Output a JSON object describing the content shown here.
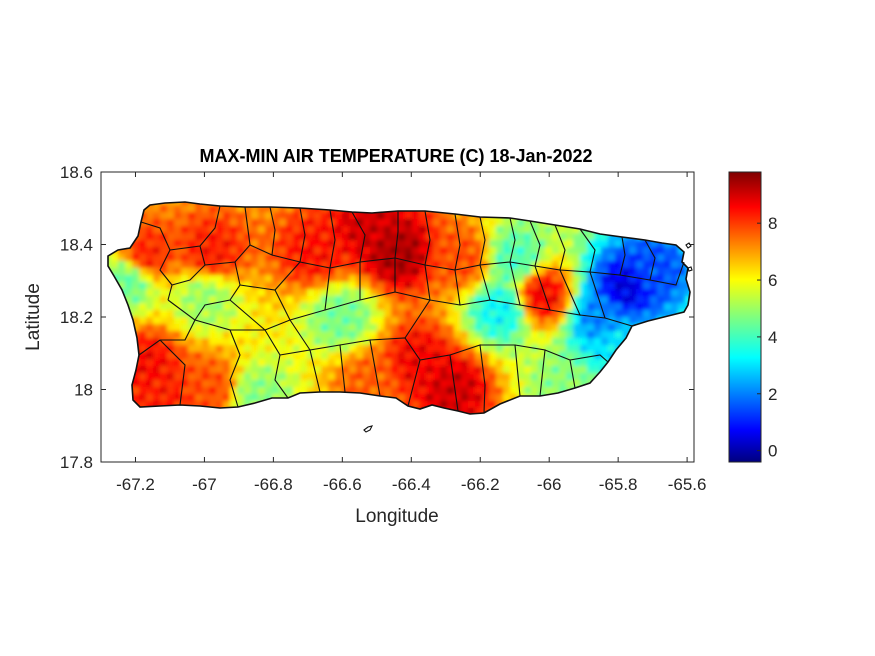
{
  "chart_data": {
    "type": "heatmap",
    "title": "MAX-MIN AIR TEMPERATURE (C) 18-Jan-2022",
    "xlabel": "Longitude",
    "ylabel": "Latitude",
    "xlim": [
      -67.3,
      -65.58
    ],
    "ylim": [
      17.8,
      18.6
    ],
    "xticks": [
      -67.2,
      -67,
      -66.8,
      -66.6,
      -66.4,
      -66.2,
      -66,
      -65.8,
      -65.6
    ],
    "xtick_labels": [
      "-67.2",
      "-67",
      "-66.8",
      "-66.6",
      "-66.4",
      "-66.2",
      "-66",
      "-65.8",
      "-65.6"
    ],
    "yticks": [
      17.8,
      18,
      18.2,
      18.4,
      18.6
    ],
    "ytick_labels": [
      "17.8",
      "18",
      "18.2",
      "18.4",
      "18.6"
    ],
    "colormap": "jet",
    "clim": [
      -0.4,
      9.8
    ],
    "colorbar_ticks": [
      0,
      2,
      4,
      6,
      8
    ],
    "colorbar_tick_labels": [
      "0",
      "2",
      "4",
      "6",
      "8"
    ],
    "grid": false,
    "hotspots": [
      {
        "lon": -66.44,
        "lat": 18.38,
        "value": 9.4
      },
      {
        "lon": -66.52,
        "lat": 18.45,
        "value": 9.0
      },
      {
        "lon": -66.68,
        "lat": 18.38,
        "value": 8.4
      },
      {
        "lon": -66.98,
        "lat": 18.38,
        "value": 8.3
      },
      {
        "lon": -67.17,
        "lat": 18.37,
        "value": 8.2
      },
      {
        "lon": -67.17,
        "lat": 18.07,
        "value": 8.5
      },
      {
        "lon": -67.12,
        "lat": 17.98,
        "value": 8.3
      },
      {
        "lon": -66.98,
        "lat": 18.0,
        "value": 7.8
      },
      {
        "lon": -66.28,
        "lat": 18.0,
        "value": 9.0
      },
      {
        "lon": -66.38,
        "lat": 18.08,
        "value": 8.6
      },
      {
        "lon": -66.52,
        "lat": 18.02,
        "value": 7.6
      },
      {
        "lon": -66.02,
        "lat": 18.26,
        "value": 8.6
      },
      {
        "lon": -66.25,
        "lat": 18.36,
        "value": 7.8
      },
      {
        "lon": -65.78,
        "lat": 18.28,
        "value": 0.6
      },
      {
        "lon": -65.7,
        "lat": 18.33,
        "value": 1.6
      },
      {
        "lon": -65.85,
        "lat": 18.2,
        "value": 2.2
      },
      {
        "lon": -65.8,
        "lat": 18.12,
        "value": 3.2
      },
      {
        "lon": -66.14,
        "lat": 18.22,
        "value": 3.5
      },
      {
        "lon": -66.1,
        "lat": 18.36,
        "value": 4.2
      },
      {
        "lon": -67.22,
        "lat": 18.3,
        "value": 4.5
      },
      {
        "lon": -67.0,
        "lat": 18.25,
        "value": 5.0
      },
      {
        "lon": -66.6,
        "lat": 18.2,
        "value": 4.6
      },
      {
        "lon": -65.95,
        "lat": 18.0,
        "value": 4.8
      },
      {
        "lon": -66.85,
        "lat": 17.98,
        "value": 4.8
      }
    ]
  }
}
